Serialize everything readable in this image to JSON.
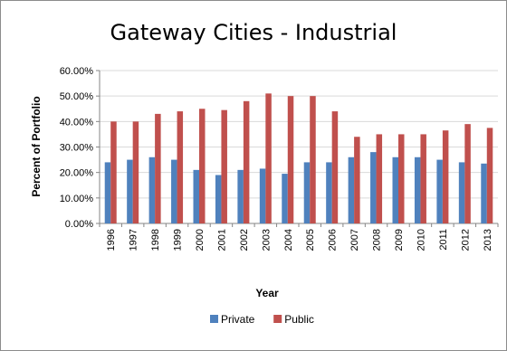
{
  "chart_data": {
    "type": "bar",
    "title": "Gateway Cities - Industrial",
    "xlabel": "Year",
    "ylabel": "Percent of Portfolio",
    "ylim": [
      0,
      60
    ],
    "y_ticks": [
      "0.00%",
      "10.00%",
      "20.00%",
      "30.00%",
      "40.00%",
      "50.00%",
      "60.00%"
    ],
    "categories": [
      "1996",
      "1997",
      "1998",
      "1999",
      "2000",
      "2001",
      "2002",
      "2003",
      "2004",
      "2005",
      "2006",
      "2007",
      "2008",
      "2009",
      "2010",
      "2011",
      "2012",
      "2013"
    ],
    "series": [
      {
        "name": "Private",
        "color": "#4f81bd",
        "values": [
          24,
          25,
          26,
          25,
          21,
          19,
          21,
          21.5,
          19.5,
          24,
          24,
          26,
          28,
          26,
          26,
          25,
          24,
          23.5
        ]
      },
      {
        "name": "Public",
        "color": "#c0504d",
        "values": [
          40,
          40,
          43,
          44,
          45,
          44.5,
          48,
          51,
          50,
          50,
          44,
          34,
          35,
          35,
          35,
          36.5,
          39,
          37.5
        ]
      }
    ],
    "grid": true,
    "legend_position": "bottom"
  }
}
